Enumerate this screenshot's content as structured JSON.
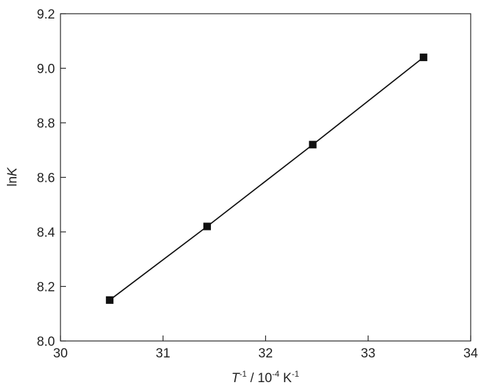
{
  "chart_data": {
    "type": "line",
    "x_label": [
      "T",
      "-1",
      " / 10",
      "-4",
      " K",
      "-1"
    ],
    "y_label": [
      "ln",
      "K"
    ],
    "xlim": [
      30,
      34
    ],
    "xticks": [
      30,
      31,
      32,
      33,
      34
    ],
    "ylim": [
      8.0,
      9.2
    ],
    "yticks": [
      {
        "value": 8.0,
        "label": "8.0"
      },
      {
        "value": 8.2,
        "label": "8.2"
      },
      {
        "value": 8.4,
        "label": "8.4"
      },
      {
        "value": 8.6,
        "label": "8.6"
      },
      {
        "value": 8.8,
        "label": "8.8"
      },
      {
        "value": 9.0,
        "label": "9.0"
      },
      {
        "value": 9.2,
        "label": "9.2"
      }
    ],
    "x": [
      30.48,
      31.43,
      32.46,
      33.54
    ],
    "series": [
      {
        "values": [
          8.15,
          8.42,
          8.72,
          9.04
        ],
        "color": "#111111",
        "marker": "square"
      }
    ]
  }
}
